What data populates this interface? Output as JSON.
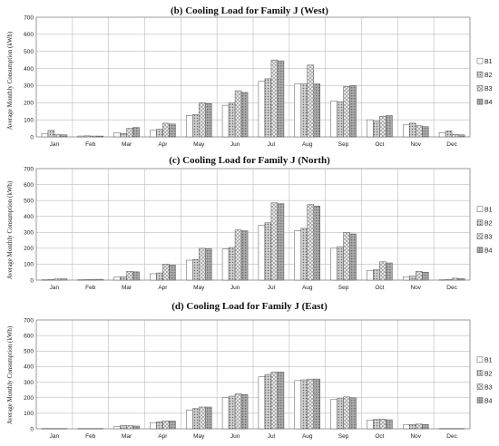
{
  "colors": {
    "b1": "#ffffff",
    "b2": "#cfcfcf",
    "b3": "#e6e6e6",
    "b4": "#a9a9a9",
    "stroke": "#555555",
    "grid": "#bdbdbd"
  },
  "chart_data": [
    {
      "type": "bar",
      "title": "(b) Cooling Load for Family J (West)",
      "ylabel": "Average Monthly Consumption (kWh)",
      "ylim": [
        0,
        700
      ],
      "yticks": [
        "0",
        "100",
        "200",
        "300",
        "400",
        "500",
        "600",
        "700"
      ],
      "grid": true,
      "legend": "right",
      "categories": [
        "Jan",
        "Feb",
        "Mar",
        "Apr",
        "May",
        "Jun",
        "Jul",
        "Aug",
        "Sep",
        "Oct",
        "Nov",
        "Dec"
      ],
      "series": [
        {
          "name": "B1",
          "values": [
            20,
            5,
            25,
            40,
            125,
            185,
            325,
            310,
            210,
            100,
            70,
            25
          ]
        },
        {
          "name": "B2",
          "values": [
            38,
            6,
            20,
            45,
            130,
            200,
            340,
            310,
            205,
            92,
            80,
            35
          ]
        },
        {
          "name": "B3",
          "values": [
            15,
            5,
            50,
            80,
            200,
            270,
            450,
            420,
            295,
            120,
            65,
            15
          ]
        },
        {
          "name": "B4",
          "values": [
            12,
            5,
            55,
            75,
            195,
            260,
            445,
            310,
            300,
            125,
            60,
            12
          ]
        }
      ]
    },
    {
      "type": "bar",
      "title": "(c) Cooling Load for Family J (North)",
      "ylabel": "Average Monthly Consumption (kWh)",
      "ylim": [
        0,
        700
      ],
      "yticks": [
        "0",
        "100",
        "200",
        "300",
        "400",
        "500",
        "600",
        "700"
      ],
      "grid": true,
      "legend": "right",
      "categories": [
        "Jan",
        "Feb",
        "Mar",
        "Apr",
        "May",
        "Jun",
        "Jul",
        "Aug",
        "Sep",
        "Oct",
        "Nov",
        "Dec"
      ],
      "series": [
        {
          "name": "B1",
          "values": [
            2,
            2,
            20,
            40,
            125,
            195,
            345,
            310,
            200,
            60,
            20,
            2
          ]
        },
        {
          "name": "B2",
          "values": [
            3,
            3,
            22,
            45,
            130,
            205,
            360,
            325,
            210,
            65,
            25,
            3
          ]
        },
        {
          "name": "B3",
          "values": [
            8,
            5,
            55,
            100,
            200,
            315,
            485,
            475,
            300,
            115,
            55,
            12
          ]
        },
        {
          "name": "B4",
          "values": [
            8,
            5,
            52,
            95,
            198,
            310,
            480,
            465,
            290,
            108,
            50,
            10
          ]
        }
      ]
    },
    {
      "type": "bar",
      "title": "(d) Cooling Load for Family J (East)",
      "ylabel": "Average Monthly Consumption (kWh)",
      "ylim": [
        0,
        700
      ],
      "yticks": [
        "0",
        "100",
        "200",
        "300",
        "400",
        "500",
        "600",
        "700"
      ],
      "grid": true,
      "legend": "right",
      "categories": [
        "Jan",
        "Feb",
        "Mar",
        "Apr",
        "May",
        "Jun",
        "Jul",
        "Aug",
        "Sep",
        "Oct",
        "Nov",
        "Dec"
      ],
      "series": [
        {
          "name": "B1",
          "values": [
            2,
            2,
            15,
            40,
            120,
            200,
            335,
            310,
            190,
            55,
            25,
            2
          ]
        },
        {
          "name": "B2",
          "values": [
            2,
            2,
            20,
            45,
            130,
            210,
            350,
            315,
            195,
            60,
            28,
            2
          ]
        },
        {
          "name": "B3",
          "values": [
            2,
            2,
            20,
            50,
            140,
            225,
            365,
            320,
            205,
            62,
            30,
            2
          ]
        },
        {
          "name": "B4",
          "values": [
            2,
            2,
            18,
            50,
            140,
            220,
            365,
            320,
            200,
            58,
            28,
            2
          ]
        }
      ]
    }
  ]
}
